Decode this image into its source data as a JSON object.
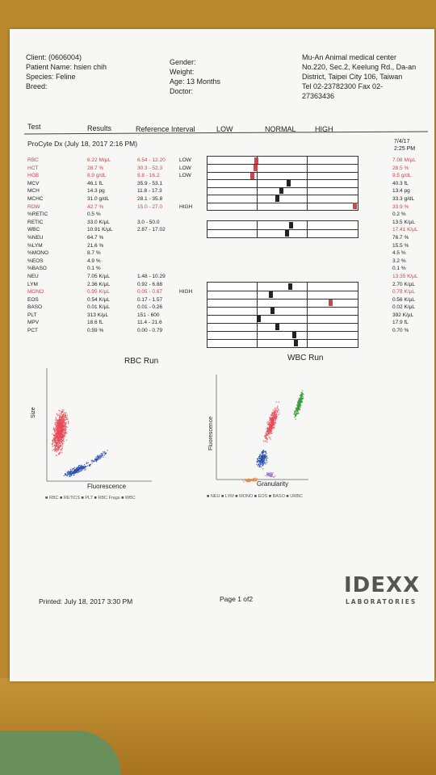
{
  "client": {
    "client_label": "Client: (0606004)",
    "patient_label": "Patient Name: hsien chih",
    "species_label": "Species: Feline",
    "breed_label": "Breed:",
    "gender_label": "Gender:",
    "weight_label": "Weight:",
    "age_label": "Age: 13 Months",
    "doctor_label": "Doctor:"
  },
  "clinic": {
    "name": "Mu-An Animal medical center",
    "address1": "No.220, Sec.2, Keelung Rd., Da-an",
    "address2": "District, Taipei City 106, Taiwan",
    "tel": "Tel 02-23782300  Fax 02-",
    "fax2": "27363436"
  },
  "columns": {
    "test": "Test",
    "results": "Results",
    "ref": "Reference Interval",
    "low": "LOW",
    "normal": "NORMAL",
    "high": "HIGH"
  },
  "run": {
    "title": "ProCyte Dx (July 18, 2017 2:16 PM)",
    "prev_date": "7/4/17",
    "prev_time": "2:25 PM"
  },
  "rows": [
    {
      "test": "RBC",
      "result": "6.22 M/μL",
      "ref": "6.54 - 12.20",
      "flag": "LOW",
      "prev": "7.08 M/μL",
      "abn": true
    },
    {
      "test": "HCT",
      "result": "28.7 %",
      "ref": "30.3 - 52.3",
      "flag": "LOW",
      "prev": "28.5 %",
      "abn": true
    },
    {
      "test": "HGB",
      "result": "8.9 g/dL",
      "ref": "9.8 - 16.2",
      "flag": "LOW",
      "prev": "9.5 g/dL",
      "abn": true
    },
    {
      "test": "MCV",
      "result": "46.1 fL",
      "ref": "35.9 - 53.1",
      "flag": "",
      "prev": "40.3 fL",
      "abn": false
    },
    {
      "test": "MCH",
      "result": "14.3 pg",
      "ref": "11.8 - 17.3",
      "flag": "",
      "prev": "13.4 pg",
      "abn": false
    },
    {
      "test": "MCHC",
      "result": "31.0 g/dL",
      "ref": "28.1 - 35.8",
      "flag": "",
      "prev": "33.3 g/dL",
      "abn": false
    },
    {
      "test": "RDW",
      "result": "42.7 %",
      "ref": "15.0 - 27.0",
      "flag": "HIGH",
      "prev": "33.9 %",
      "abn": true
    },
    {
      "test": "%RETIC",
      "result": "0.5 %",
      "ref": "",
      "flag": "",
      "prev": "0.2 %",
      "abn": false
    },
    {
      "test": "RETIC",
      "result": "33.0 K/μL",
      "ref": "3.0 - 50.0",
      "flag": "",
      "prev": "13.5 K/μL",
      "abn": false
    },
    {
      "test": "WBC",
      "result": "10.91 K/μL",
      "ref": "2.87 - 17.02",
      "flag": "",
      "prev": "17.41 K/μL",
      "abn": false,
      "prev_abn": true
    },
    {
      "test": "%NEU",
      "result": "64.7 %",
      "ref": "",
      "flag": "",
      "prev": "76.7 %",
      "abn": false
    },
    {
      "test": "%LYM",
      "result": "21.6 %",
      "ref": "",
      "flag": "",
      "prev": "15.5 %",
      "abn": false
    },
    {
      "test": "%MONO",
      "result": "8.7 %",
      "ref": "",
      "flag": "",
      "prev": "4.5 %",
      "abn": false
    },
    {
      "test": "%EOS",
      "result": "4.9 %",
      "ref": "",
      "flag": "",
      "prev": "3.2 %",
      "abn": false
    },
    {
      "test": "%BASO",
      "result": "0.1 %",
      "ref": "",
      "flag": "",
      "prev": "0.1 %",
      "abn": false
    },
    {
      "test": "NEU",
      "result": "7.05 K/μL",
      "ref": "1.48 - 10.29",
      "flag": "",
      "prev": "13.35 K/μL",
      "abn": false,
      "prev_abn": true
    },
    {
      "test": "LYM",
      "result": "2.36 K/μL",
      "ref": "0.92 - 6.88",
      "flag": "",
      "prev": "2.70 K/μL",
      "abn": false
    },
    {
      "test": "MONO",
      "result": "0.95 K/μL",
      "ref": "0.05 - 0.67",
      "flag": "HIGH",
      "prev": "0.78 K/μL",
      "abn": true,
      "prev_abn": true
    },
    {
      "test": "EOS",
      "result": "0.54 K/μL",
      "ref": "0.17 - 1.57",
      "flag": "",
      "prev": "0.56 K/μL",
      "abn": false
    },
    {
      "test": "BASO",
      "result": "0.01 K/μL",
      "ref": "0.01 - 0.26",
      "flag": "",
      "prev": "0.02 K/μL",
      "abn": false
    },
    {
      "test": "PLT",
      "result": "313 K/μL",
      "ref": "151 - 600",
      "flag": "",
      "prev": "392 K/μL",
      "abn": false
    },
    {
      "test": "MPV",
      "result": "18.6 fL",
      "ref": "11.4 - 21.6",
      "flag": "",
      "prev": "17.9 fL",
      "abn": false
    },
    {
      "test": "PCT",
      "result": "0.59 %",
      "ref": "0.00 - 0.79",
      "flag": "",
      "prev": "0.70 %",
      "abn": false
    }
  ],
  "rbc_plot": {
    "title": "RBC Run",
    "xlabel": "Fluorescence",
    "ylabel": "Size",
    "legend": "■ RBC  ■ RETICS  ■ PLT  ■ RBC Frags  ■ WBC"
  },
  "wbc_plot": {
    "title": "WBC Run",
    "xlabel": "Granularity",
    "ylabel": "Fluorescence",
    "legend": "■ NEU  ■ LYM  ■ MONO  ■ EOS  ■ BASO  ■ URBC"
  },
  "colors": {
    "abnormal": "#d0454a",
    "rbc": "#e84a55",
    "retic": "#2a4fb0",
    "wbc_green": "#3a9a3a",
    "mono_purple": "#a07ac8",
    "eos_orange": "#e8813a"
  },
  "footer": {
    "printed": "Printed: July 18, 2017 3:30 PM",
    "page": "Page 1 of2",
    "logo": "IDEXX",
    "logo_sub": "LABORATORIES"
  }
}
